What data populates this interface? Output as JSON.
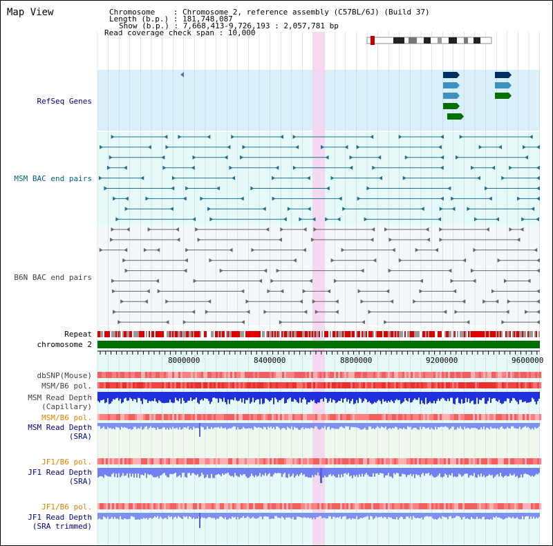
{
  "title": "Map View",
  "info": {
    "chromosome": "Chromosome    : Chromosome 2, reference assembly (C57BL/6J) (Build 37)",
    "length": "Length (b.p.) : 181,748,087",
    "show": "Show (b.p.) : 7,668,413-9,726,193 : 2,057,781 bp",
    "coverage": "Read coverage check span : 10,000"
  },
  "tracks": {
    "refseq": "RefSeq Genes",
    "msm_bac": "MSM BAC end pairs",
    "b6n_bac": "B6N BAC end pairs",
    "repeat": "Repeat",
    "chromosome": "chromosome 2",
    "dbsnp": "dbSNP(Mouse)",
    "msm_b6_pol": "MSM/B6 pol.",
    "msm_read_cap_1": "MSM Read Depth",
    "msm_read_cap_2": "(Capillary)",
    "msm_b6_pol2": "MSM/B6 pol.",
    "msm_read_sra_1": "MSM Read Depth",
    "msm_read_sra_2": "(SRA)",
    "jf1_b6_pol": "JF1/B6 pol.",
    "jf1_read_sra_1": "JF1 Read Depth",
    "jf1_read_sra_2": "(SRA)",
    "jf1_b6_pol2": "JF1/B6 pol.",
    "jf1_read_trim_1": "JF1 Read Depth",
    "jf1_read_trim_2": "(SRA trimmed)"
  },
  "axis": {
    "ticks": [
      "8000000",
      "8400000",
      "8800000",
      "9200000",
      "9600000"
    ]
  },
  "colors": {
    "refseq_bg": "#d9f0fa",
    "bac_bg": "#e6fafa",
    "b6n_bg": "#f4f8fc",
    "sra_bg": "#eefaee",
    "jf1_bg": "#e2f6f6",
    "highlight": "#f6d3ee",
    "label_navy": "#000080",
    "label_teal": "#006080",
    "label_gray": "#404040",
    "label_orange": "#e08000",
    "chrom_green": "#007000"
  }
}
